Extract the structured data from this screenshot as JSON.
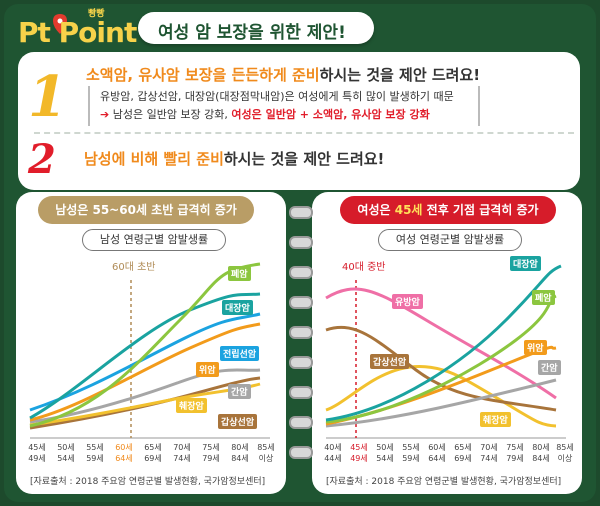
{
  "logo": {
    "tag": "빵빵",
    "text": "Pt Point"
  },
  "title": "여성 암 보장을 위한 제안!",
  "items": [
    {
      "num": "1",
      "pre": "소액암, 유사암 보장을 든든하게 준비",
      "post": "하시는 것을 제안 드려요!",
      "sub1": "유방암, 갑상선암, 대장암(대장점막내암)은 여성에게 특히 많이 발생하기 때문",
      "sub2_arrow": "➔",
      "sub2_text": "남성은 일반암 보장 강화,",
      "sub2_bold": "여성은 일반암 + 소액암, 유사암 보장 강화"
    },
    {
      "num": "2",
      "pre": "남성에 비해 빨리 준비",
      "post": "하시는 것을 제안 드려요!"
    }
  ],
  "left": {
    "header": "남성은 55~60세 초반 급격히 증가",
    "caption": "남성 연령군별 암발생률",
    "marker": "60대 초반",
    "source": "[자료출처 : 2018 주요암 연령군별 발생현황, 국가암정보센터]",
    "ticks": [
      [
        "45세",
        "49세"
      ],
      [
        "50세",
        "54세"
      ],
      [
        "55세",
        "59세"
      ],
      [
        "60세",
        "64세"
      ],
      [
        "65세",
        "69세"
      ],
      [
        "70세",
        "74세"
      ],
      [
        "75세",
        "79세"
      ],
      [
        "80세",
        "84세"
      ],
      [
        "85세",
        "이상"
      ]
    ],
    "series": [
      {
        "name": "폐암",
        "color": "#8cc63f"
      },
      {
        "name": "대장암",
        "color": "#1aa3a0"
      },
      {
        "name": "전립선암",
        "color": "#1ba3e0"
      },
      {
        "name": "위암",
        "color": "#f29b1b"
      },
      {
        "name": "간암",
        "color": "#a6a6a6"
      },
      {
        "name": "췌장암",
        "color": "#f2c12e"
      },
      {
        "name": "갑상선암",
        "color": "#a8743b"
      }
    ]
  },
  "right": {
    "header_pre": "여성은",
    "header_hl": "45세",
    "header_post": "전후 기점 급격히 증가",
    "caption": "여성 연령군별 암발생률",
    "marker": "40대 중반",
    "source": "[자료출처 : 2018 주요암 연령군별 발생현황, 국가암정보센터]",
    "ticks": [
      [
        "40세",
        "44세"
      ],
      [
        "45세",
        "49세"
      ],
      [
        "50세",
        "54세"
      ],
      [
        "55세",
        "59세"
      ],
      [
        "60세",
        "64세"
      ],
      [
        "65세",
        "69세"
      ],
      [
        "70세",
        "74세"
      ],
      [
        "75세",
        "79세"
      ],
      [
        "80세",
        "84세"
      ],
      [
        "85세",
        "이상"
      ]
    ],
    "series": [
      {
        "name": "대장암",
        "color": "#1aa3a0"
      },
      {
        "name": "폐암",
        "color": "#8cc63f"
      },
      {
        "name": "유방암",
        "color": "#ef6fa6"
      },
      {
        "name": "위암",
        "color": "#f29b1b"
      },
      {
        "name": "간암",
        "color": "#a6a6a6"
      },
      {
        "name": "갑상선암",
        "color": "#a8743b"
      },
      {
        "name": "췌장암",
        "color": "#f2c12e"
      }
    ]
  }
}
